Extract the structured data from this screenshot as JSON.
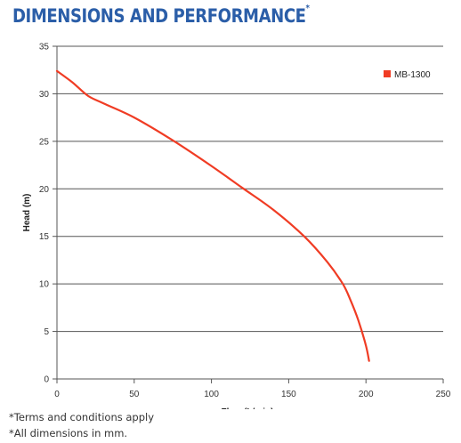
{
  "header": {
    "title": "DIMENSIONS AND PERFORMANCE",
    "title_mark": "*"
  },
  "footnotes": [
    "*Terms and conditions apply",
    "*All dimensions in mm."
  ],
  "colors": {
    "title": "#2b5ea8",
    "series": "#f03c24",
    "grid": "#555555"
  },
  "chart_data": {
    "type": "line",
    "xlabel": "Flow (L/min)",
    "ylabel": "Head (m)",
    "xlim": [
      0,
      250
    ],
    "ylim": [
      0,
      35
    ],
    "xticks": [
      0,
      50,
      100,
      150,
      200,
      250
    ],
    "yticks": [
      0,
      5,
      10,
      15,
      20,
      25,
      30,
      35
    ],
    "grid": "horizontal",
    "legend_position": "top-right",
    "series": [
      {
        "name": "MB-1300",
        "color": "#f03c24",
        "x": [
          0,
          10,
          20,
          30,
          50,
          75,
          100,
          120,
          140,
          160,
          175,
          185,
          190,
          195,
          200,
          202
        ],
        "y": [
          32.4,
          31.2,
          29.8,
          29.0,
          27.5,
          25.1,
          22.4,
          20.1,
          17.8,
          15.0,
          12.3,
          10.0,
          8.3,
          6.2,
          3.5,
          1.9
        ]
      }
    ]
  }
}
